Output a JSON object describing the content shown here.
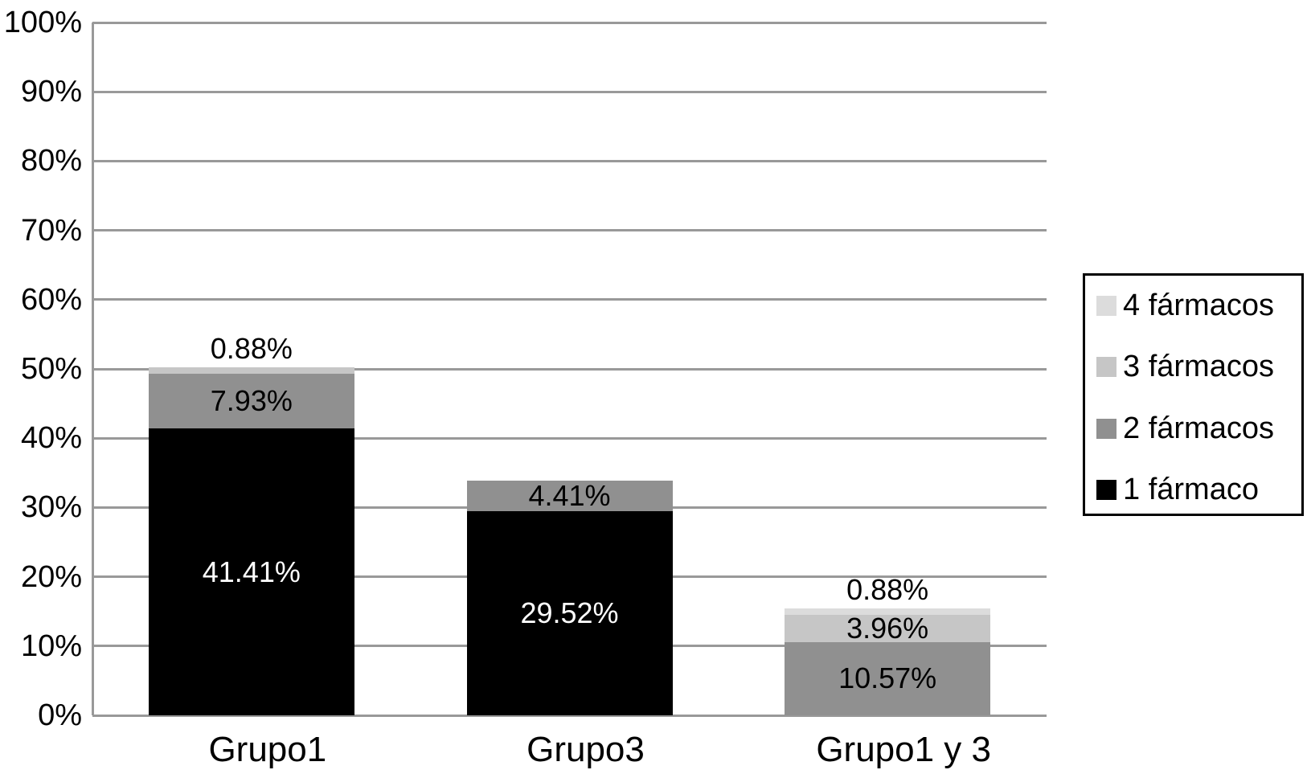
{
  "chart_data": {
    "type": "bar",
    "stacked": true,
    "title": "",
    "xlabel": "",
    "ylabel": "",
    "categories": [
      "Grupo1",
      "Grupo3",
      "Grupo1 y 3"
    ],
    "series": [
      {
        "name": "1 fármaco",
        "color": "#000000",
        "label_color": "#ffffff",
        "values": [
          41.41,
          29.52,
          0
        ],
        "value_labels": [
          "41.41%",
          "29.52%",
          ""
        ]
      },
      {
        "name": "2 fármacos",
        "color": "#909090",
        "label_color": "#000000",
        "values": [
          7.93,
          4.41,
          10.57
        ],
        "value_labels": [
          "7.93%",
          "4.41%",
          "10.57%"
        ]
      },
      {
        "name": "3 fármacos",
        "color": "#c6c6c6",
        "label_color": "#000000",
        "values": [
          0.88,
          0,
          3.96
        ],
        "value_labels": [
          "0.88%",
          "",
          "3.96%"
        ]
      },
      {
        "name": "4 fármacos",
        "color": "#dcdcdc",
        "label_color": "#000000",
        "values": [
          0,
          0,
          0.88
        ],
        "value_labels": [
          "",
          "",
          "0.88%"
        ]
      }
    ],
    "y_axis": {
      "min": 0,
      "max": 100,
      "tick_step": 10,
      "tick_labels": [
        "0%",
        "10%",
        "20%",
        "30%",
        "40%",
        "50%",
        "60%",
        "70%",
        "80%",
        "90%",
        "100%"
      ]
    },
    "grid": true,
    "grid_color": "#999999",
    "legend": {
      "position": "right",
      "items": [
        {
          "label": "4 fármacos",
          "color": "#dcdcdc"
        },
        {
          "label": "3 fármacos",
          "color": "#c6c6c6"
        },
        {
          "label": "2 fármacos",
          "color": "#909090"
        },
        {
          "label": "1 fármaco",
          "color": "#000000"
        }
      ]
    }
  }
}
